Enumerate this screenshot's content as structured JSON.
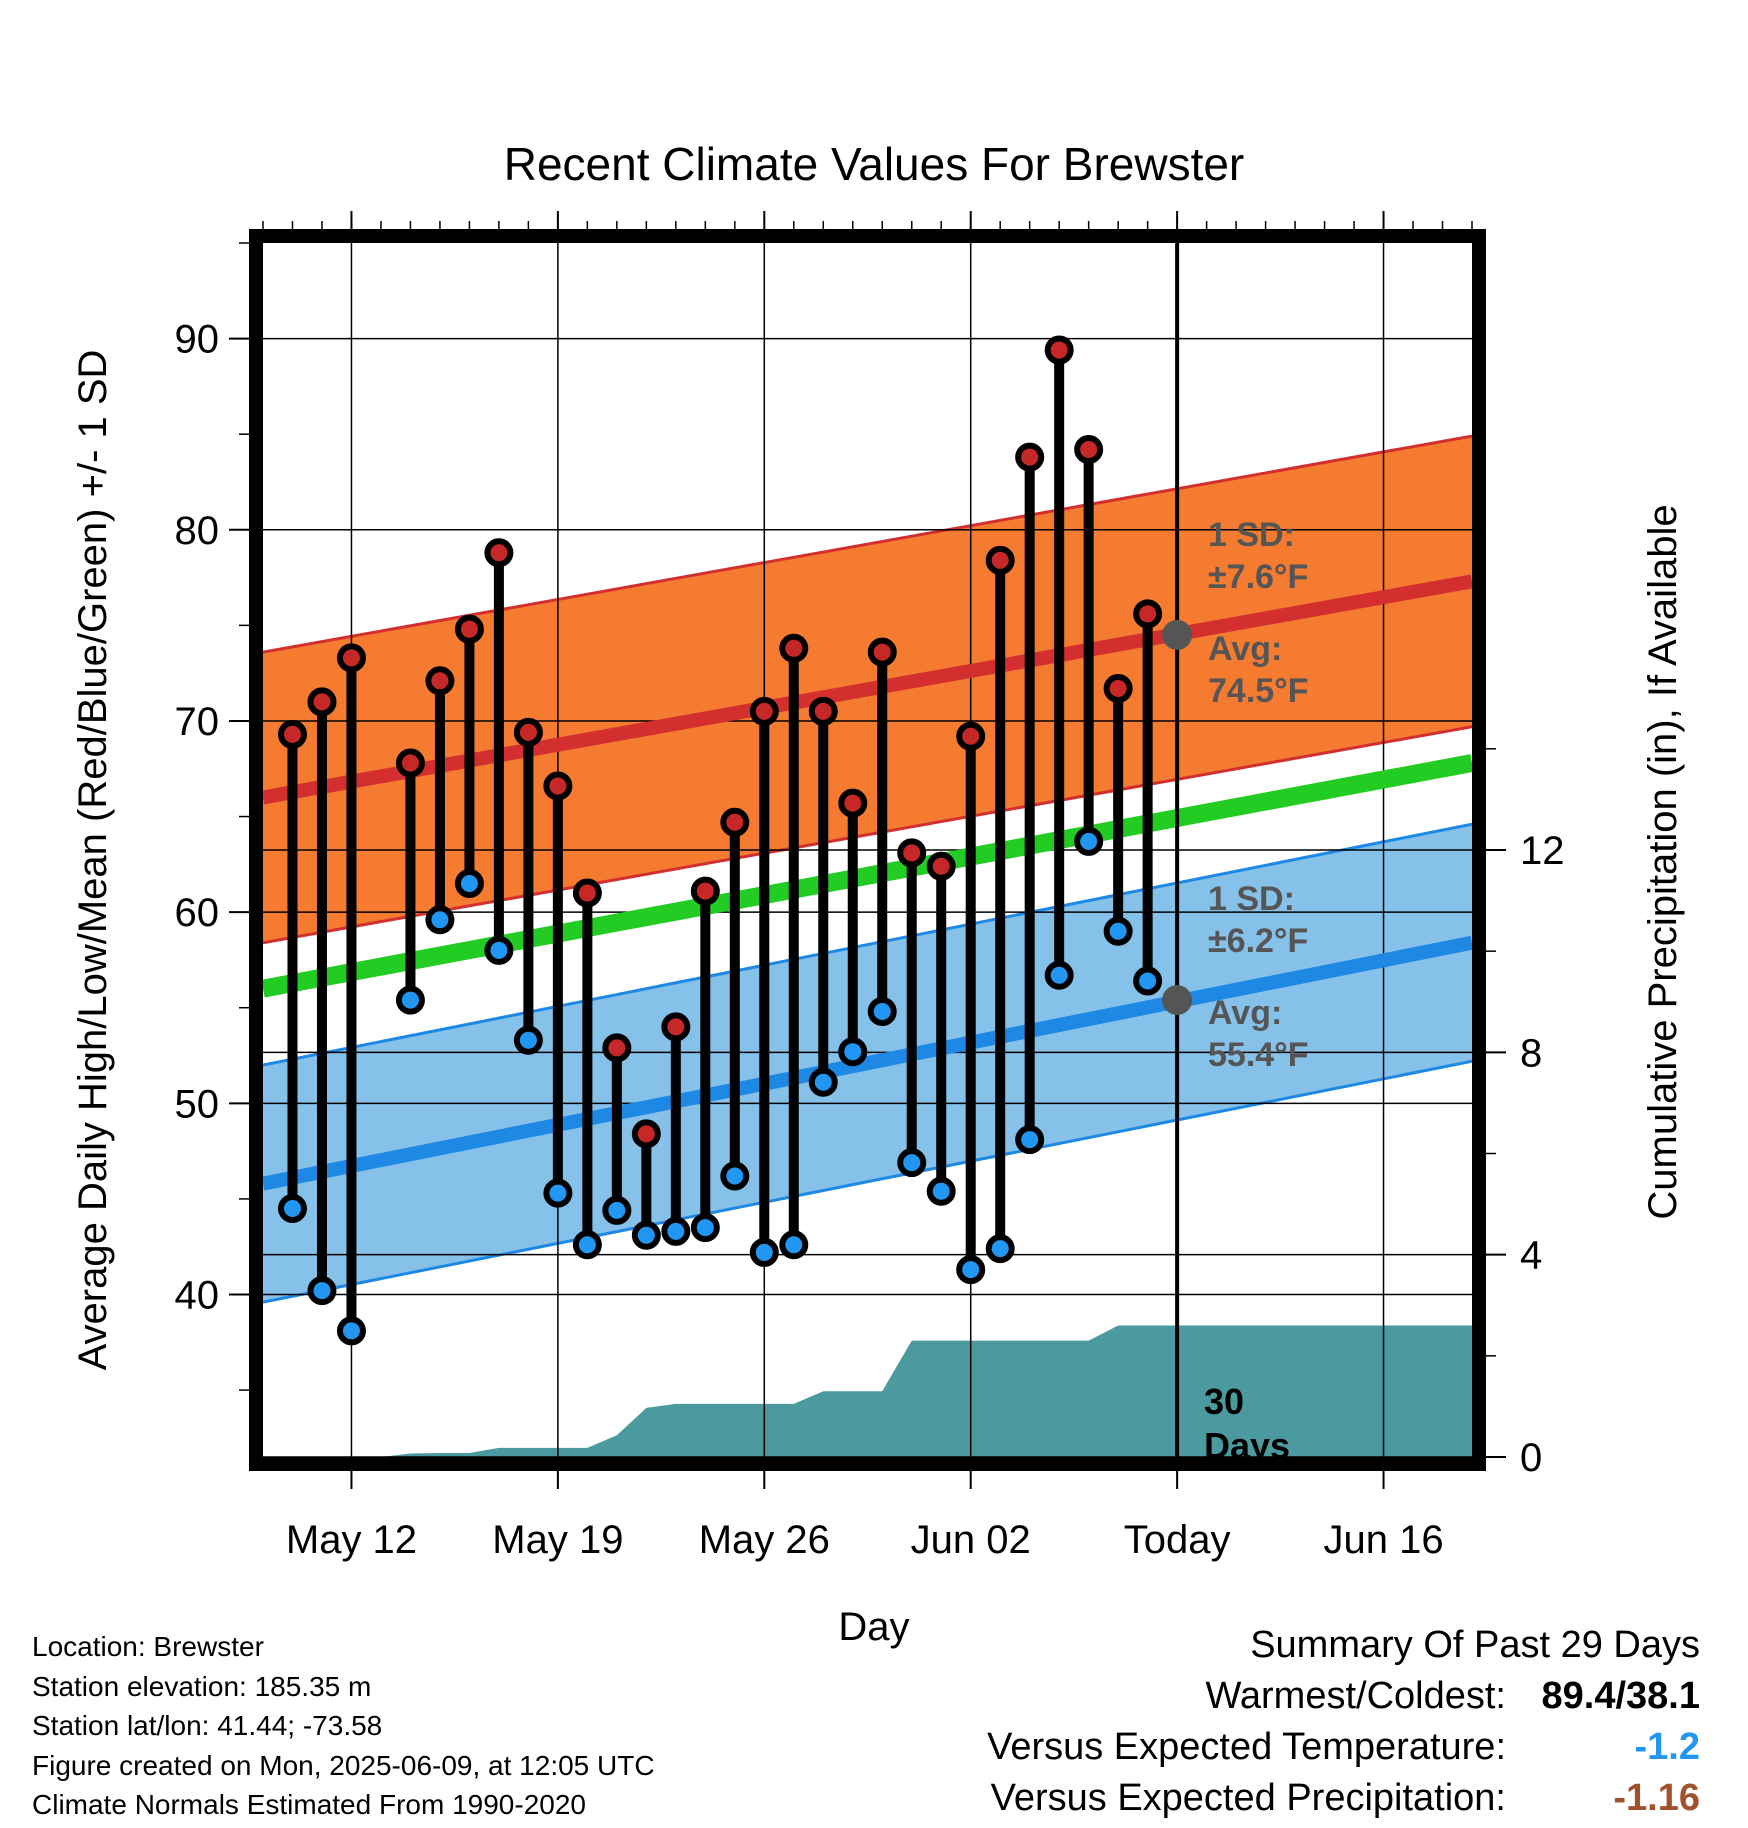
{
  "chart_data": {
    "type": "line",
    "title": "Recent Climate Values For Brewster",
    "xlabel": "Day",
    "ylabel": "Average Daily High/Low/Mean (Red/Blue/Green) +/- 1 SD",
    "y2label": "Cumulative Precipitation (in), If Available",
    "x_range": [
      "2025-05-09",
      "2025-06-19"
    ],
    "ylim": [
      31.5,
      95
    ],
    "y2lim": [
      0,
      24
    ],
    "x_ticks": [
      {
        "date": "2025-05-12",
        "label": "May 12"
      },
      {
        "date": "2025-05-19",
        "label": "May 19"
      },
      {
        "date": "2025-05-26",
        "label": "May 26"
      },
      {
        "date": "2025-06-02",
        "label": "Jun 02"
      },
      {
        "date": "2025-06-09",
        "label": "Today"
      },
      {
        "date": "2025-06-16",
        "label": "Jun 16"
      }
    ],
    "y_ticks": [
      40,
      50,
      60,
      70,
      80,
      90
    ],
    "y2_ticks": [
      0,
      4,
      8,
      12
    ],
    "grid": true,
    "today": "2025-06-09",
    "series": [
      {
        "name": "High",
        "color": "#c62828",
        "points": [
          {
            "date": "2025-05-10",
            "value": 69.3
          },
          {
            "date": "2025-05-11",
            "value": 71.0
          },
          {
            "date": "2025-05-12",
            "value": 73.3
          },
          {
            "date": "2025-05-14",
            "value": 67.8
          },
          {
            "date": "2025-05-15",
            "value": 72.1
          },
          {
            "date": "2025-05-16",
            "value": 74.8
          },
          {
            "date": "2025-05-17",
            "value": 78.8
          },
          {
            "date": "2025-05-18",
            "value": 69.4
          },
          {
            "date": "2025-05-19",
            "value": 66.6
          },
          {
            "date": "2025-05-20",
            "value": 61.0
          },
          {
            "date": "2025-05-21",
            "value": 52.9
          },
          {
            "date": "2025-05-22",
            "value": 48.4
          },
          {
            "date": "2025-05-23",
            "value": 54.0
          },
          {
            "date": "2025-05-24",
            "value": 61.1
          },
          {
            "date": "2025-05-25",
            "value": 64.7
          },
          {
            "date": "2025-05-26",
            "value": 70.5
          },
          {
            "date": "2025-05-27",
            "value": 73.8
          },
          {
            "date": "2025-05-28",
            "value": 70.5
          },
          {
            "date": "2025-05-29",
            "value": 65.7
          },
          {
            "date": "2025-05-30",
            "value": 73.6
          },
          {
            "date": "2025-05-31",
            "value": 63.1
          },
          {
            "date": "2025-06-01",
            "value": 62.4
          },
          {
            "date": "2025-06-02",
            "value": 69.2
          },
          {
            "date": "2025-06-03",
            "value": 78.4
          },
          {
            "date": "2025-06-04",
            "value": 83.8
          },
          {
            "date": "2025-06-05",
            "value": 89.4
          },
          {
            "date": "2025-06-06",
            "value": 84.2
          },
          {
            "date": "2025-06-07",
            "value": 71.7
          },
          {
            "date": "2025-06-08",
            "value": 75.6
          }
        ]
      },
      {
        "name": "Low",
        "color": "#2196f3",
        "points": [
          {
            "date": "2025-05-10",
            "value": 44.5
          },
          {
            "date": "2025-05-11",
            "value": 40.2
          },
          {
            "date": "2025-05-12",
            "value": 38.1
          },
          {
            "date": "2025-05-14",
            "value": 55.4
          },
          {
            "date": "2025-05-15",
            "value": 59.6
          },
          {
            "date": "2025-05-16",
            "value": 61.5
          },
          {
            "date": "2025-05-17",
            "value": 58.0
          },
          {
            "date": "2025-05-18",
            "value": 53.3
          },
          {
            "date": "2025-05-19",
            "value": 45.3
          },
          {
            "date": "2025-05-20",
            "value": 42.6
          },
          {
            "date": "2025-05-21",
            "value": 44.4
          },
          {
            "date": "2025-05-22",
            "value": 43.1
          },
          {
            "date": "2025-05-23",
            "value": 43.3
          },
          {
            "date": "2025-05-24",
            "value": 43.5
          },
          {
            "date": "2025-05-25",
            "value": 46.2
          },
          {
            "date": "2025-05-26",
            "value": 42.2
          },
          {
            "date": "2025-05-27",
            "value": 42.6
          },
          {
            "date": "2025-05-28",
            "value": 51.1
          },
          {
            "date": "2025-05-29",
            "value": 52.7
          },
          {
            "date": "2025-05-30",
            "value": 54.8
          },
          {
            "date": "2025-05-31",
            "value": 46.9
          },
          {
            "date": "2025-06-01",
            "value": 45.4
          },
          {
            "date": "2025-06-02",
            "value": 41.3
          },
          {
            "date": "2025-06-03",
            "value": 42.4
          },
          {
            "date": "2025-06-04",
            "value": 48.1
          },
          {
            "date": "2025-06-05",
            "value": 56.7
          },
          {
            "date": "2025-06-06",
            "value": 63.7
          },
          {
            "date": "2025-06-07",
            "value": 59.0
          },
          {
            "date": "2025-06-08",
            "value": 56.4
          }
        ]
      }
    ],
    "normals": {
      "high_mean": {
        "start": 66.0,
        "end": 77.3,
        "color": "#d32f2f"
      },
      "high_sd": 7.6,
      "high_band_color": "#f47b30",
      "low_mean": {
        "start": 45.8,
        "end": 58.4,
        "color": "#1e88e5"
      },
      "low_sd": 6.2,
      "low_band_color": "#85c1e9",
      "mean": {
        "start": 56.0,
        "end": 67.8,
        "color": "#22cc22"
      }
    },
    "today_markers": {
      "high_avg": 74.5,
      "low_avg": 55.4,
      "color": "#555555"
    },
    "precipitation": {
      "color": "#4a9aa0",
      "points": [
        {
          "date": "2025-05-09",
          "value": 0.0
        },
        {
          "date": "2025-05-13",
          "value": 0.0
        },
        {
          "date": "2025-05-14",
          "value": 0.07
        },
        {
          "date": "2025-05-15",
          "value": 0.08
        },
        {
          "date": "2025-05-16",
          "value": 0.08
        },
        {
          "date": "2025-05-17",
          "value": 0.18
        },
        {
          "date": "2025-05-18",
          "value": 0.18
        },
        {
          "date": "2025-05-19",
          "value": 0.18
        },
        {
          "date": "2025-05-20",
          "value": 0.18
        },
        {
          "date": "2025-05-21",
          "value": 0.43
        },
        {
          "date": "2025-05-22",
          "value": 0.97
        },
        {
          "date": "2025-05-23",
          "value": 1.05
        },
        {
          "date": "2025-05-24",
          "value": 1.05
        },
        {
          "date": "2025-05-25",
          "value": 1.05
        },
        {
          "date": "2025-05-26",
          "value": 1.05
        },
        {
          "date": "2025-05-27",
          "value": 1.05
        },
        {
          "date": "2025-05-28",
          "value": 1.3
        },
        {
          "date": "2025-05-29",
          "value": 1.3
        },
        {
          "date": "2025-05-30",
          "value": 1.3
        },
        {
          "date": "2025-05-31",
          "value": 2.3
        },
        {
          "date": "2025-06-01",
          "value": 2.3
        },
        {
          "date": "2025-06-05",
          "value": 2.3
        },
        {
          "date": "2025-06-06",
          "value": 2.3
        },
        {
          "date": "2025-06-07",
          "value": 2.6
        },
        {
          "date": "2025-06-08",
          "value": 2.6
        },
        {
          "date": "2025-06-19",
          "value": 2.6
        }
      ]
    }
  },
  "annotations": {
    "high_sd_label": "1 SD:",
    "high_sd_value": "±7.6°F",
    "high_avg_label": "Avg:",
    "high_avg_value": "74.5°F",
    "low_sd_label": "1 SD:",
    "low_sd_value": "±6.2°F",
    "low_avg_label": "Avg:",
    "low_avg_value": "55.4°F",
    "days_number": "30",
    "days_label": "Days"
  },
  "meta": {
    "location": "Location: Brewster",
    "elevation": "Station elevation: 185.35 m",
    "latlon": "Station lat/lon: 41.44; -73.58",
    "created": "Figure created on Mon, 2025-06-09, at 12:05 UTC",
    "normals": "Climate Normals Estimated From 1990-2020"
  },
  "summary": {
    "title": "Summary Of Past 29 Days",
    "warm_cold_label": "Warmest/Coldest:",
    "warm_cold_value": "89.4/38.1",
    "temp_label": "Versus Expected Temperature:",
    "temp_value": "-1.2",
    "temp_color": "#2196f3",
    "precip_label": "Versus Expected Precipitation:",
    "precip_value": "-1.16",
    "precip_color": "#a0522d"
  }
}
